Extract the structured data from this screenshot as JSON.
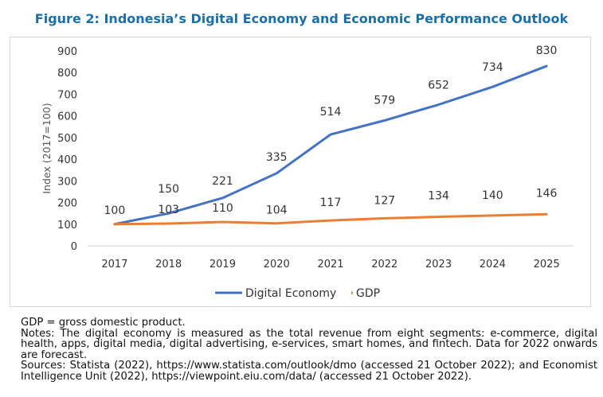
{
  "figure_title": "Figure 2: Indonesia’s Digital Economy and Economic Performance Outlook",
  "notes": {
    "gdp": "GDP = gross domestic product.",
    "notes": "Notes: The digital economy is measured as the total revenue from eight segments: e-commerce, digital health, apps, digital media, digital advertising, e-services, smart homes, and fintech. Data for 2022 onwards are forecast.",
    "sources": "Sources: Statista (2022), https://www.statista.com/outlook/dmo (accessed 21 October 2022); and Economist Intelligence Unit (2022), https://viewpoint.eiu.com/data/ (accessed 21 October 2022)."
  },
  "chart_data": {
    "type": "line",
    "title": "",
    "xlabel": "",
    "ylabel": "Index (2017=100)",
    "ylim": [
      0,
      900
    ],
    "yticks": [
      0,
      100,
      200,
      300,
      400,
      500,
      600,
      700,
      800,
      900
    ],
    "categories": [
      "2017",
      "2018",
      "2019",
      "2020",
      "2021",
      "2022",
      "2023",
      "2024",
      "2025"
    ],
    "series": [
      {
        "name": "Digital Economy",
        "color": "#4472c4",
        "values": [
          100,
          150,
          221,
          335,
          514,
          579,
          652,
          734,
          830
        ]
      },
      {
        "name": "GDP",
        "color": "#ed7d31",
        "values": [
          100,
          103,
          110,
          104,
          117,
          127,
          134,
          140,
          146
        ]
      }
    ],
    "grid": false,
    "legend": "bottom"
  }
}
